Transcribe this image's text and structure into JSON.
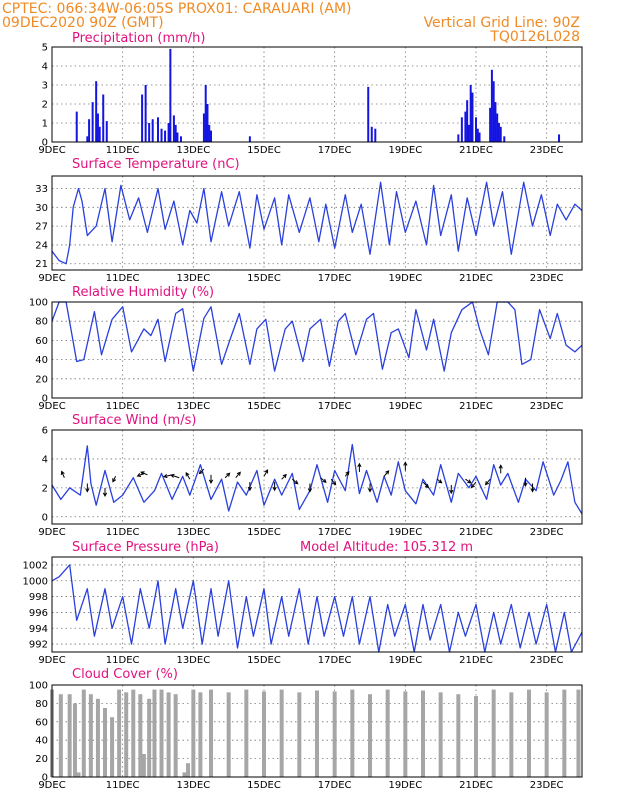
{
  "header": {
    "left1": "CPTEC:   066:34W-06:05S   PROX01: CARAUARI (AM)",
    "left2": "09DEC2020 90Z (GMT)",
    "right1": "Vertical Grid Line: 90Z",
    "right2": "TQ0126L028"
  },
  "chart_data": [
    {
      "type": "bar",
      "title": "Precipitation (mm/h)",
      "x_labels": [
        "9DEC",
        "11DEC",
        "13DEC",
        "15DEC",
        "17DEC",
        "19DEC",
        "21DEC",
        "23DEC"
      ],
      "ylim": [
        0,
        5
      ],
      "yticks": [
        "0",
        "1",
        "2",
        "3",
        "4",
        "5"
      ],
      "series": [
        {
          "color": "#1515e0",
          "x_days": [
            0.7,
            1.0,
            1.05,
            1.15,
            1.25,
            1.3,
            1.35,
            1.45,
            1.55,
            2.55,
            2.65,
            2.75,
            2.85,
            3.0,
            3.1,
            3.2,
            3.3,
            3.35,
            3.45,
            3.5,
            3.55,
            3.65,
            4.3,
            4.35,
            4.4,
            4.45,
            4.5,
            5.6,
            8.95,
            9.05,
            9.15,
            11.5,
            11.6,
            11.7,
            11.75,
            11.8,
            11.85,
            11.9,
            12.0,
            12.05,
            12.1,
            12.4,
            12.45,
            12.5,
            12.55,
            12.6,
            12.65,
            12.7,
            12.8,
            14.35
          ],
          "values": [
            1.6,
            0.3,
            1.2,
            2.1,
            3.2,
            1.5,
            0.8,
            2.5,
            1.1,
            2.5,
            3.0,
            1.0,
            1.2,
            1.3,
            0.7,
            0.6,
            1.0,
            4.9,
            1.4,
            0.9,
            0.5,
            0.3,
            1.5,
            3.0,
            2.0,
            0.9,
            0.6,
            0.3,
            2.9,
            0.8,
            0.7,
            0.4,
            1.3,
            1.6,
            2.2,
            0.9,
            3.0,
            2.6,
            1.3,
            0.7,
            0.5,
            1.8,
            3.8,
            3.2,
            2.1,
            1.5,
            1.0,
            0.8,
            0.3,
            0.4
          ]
        }
      ]
    },
    {
      "type": "line",
      "title": "Surface Temperature (nC)",
      "x_labels": [
        "9DEC",
        "11DEC",
        "13DEC",
        "15DEC",
        "17DEC",
        "19DEC",
        "21DEC",
        "23DEC"
      ],
      "ylim": [
        20,
        35
      ],
      "yticks": [
        "21",
        "24",
        "27",
        "30",
        "33"
      ],
      "series": [
        {
          "color": "#2a40dc",
          "x_days": [
            0,
            0.2,
            0.4,
            0.5,
            0.6,
            0.75,
            0.85,
            1.0,
            1.25,
            1.5,
            1.7,
            1.95,
            2.2,
            2.45,
            2.7,
            3.0,
            3.2,
            3.45,
            3.7,
            3.9,
            4.1,
            4.3,
            4.5,
            4.8,
            5.0,
            5.3,
            5.6,
            5.8,
            6.0,
            6.3,
            6.5,
            6.7,
            7.0,
            7.3,
            7.55,
            7.75,
            8.0,
            8.3,
            8.5,
            8.75,
            9.0,
            9.3,
            9.55,
            9.75,
            10.0,
            10.3,
            10.6,
            10.8,
            11.0,
            11.3,
            11.5,
            11.75,
            12.0,
            12.3,
            12.5,
            12.75,
            13.0,
            13.35,
            13.6,
            13.85,
            14.1,
            14.3,
            14.55,
            14.8,
            15.0
          ],
          "values": [
            23.0,
            21.5,
            21.0,
            24.0,
            30.0,
            33.0,
            31.0,
            25.5,
            27.0,
            33.0,
            24.5,
            33.5,
            28.0,
            31.5,
            26.0,
            33.0,
            26.5,
            31.0,
            24.0,
            29.5,
            27.5,
            33.0,
            24.5,
            32.5,
            27.0,
            32.5,
            23.5,
            32.0,
            26.5,
            31.5,
            24.0,
            32.0,
            26.0,
            31.5,
            24.5,
            30.5,
            23.5,
            32.0,
            26.0,
            30.5,
            22.5,
            34.0,
            24.0,
            32.5,
            26.0,
            31.0,
            24.0,
            33.5,
            25.5,
            32.0,
            23.0,
            31.5,
            25.5,
            34.0,
            27.0,
            32.5,
            22.5,
            34.0,
            27.0,
            32.0,
            25.5,
            30.5,
            28.0,
            30.5,
            29.5
          ]
        }
      ]
    },
    {
      "type": "line",
      "title": "Relative Humidity (%)",
      "x_labels": [
        "9DEC",
        "11DEC",
        "13DEC",
        "15DEC",
        "17DEC",
        "19DEC",
        "21DEC",
        "23DEC"
      ],
      "ylim": [
        0,
        100
      ],
      "yticks": [
        "0",
        "20",
        "40",
        "60",
        "80",
        "100"
      ],
      "series": [
        {
          "color": "#2a40dc",
          "x_days": [
            0,
            0.2,
            0.4,
            0.7,
            0.9,
            1.2,
            1.4,
            1.7,
            2.0,
            2.25,
            2.6,
            2.8,
            3.0,
            3.2,
            3.5,
            3.7,
            4.0,
            4.3,
            4.5,
            4.8,
            5.05,
            5.3,
            5.6,
            5.8,
            6.05,
            6.3,
            6.6,
            6.8,
            7.1,
            7.3,
            7.6,
            7.85,
            8.1,
            8.3,
            8.6,
            8.9,
            9.1,
            9.35,
            9.6,
            9.8,
            10.1,
            10.3,
            10.6,
            10.8,
            11.1,
            11.3,
            11.6,
            11.9,
            12.1,
            12.35,
            12.6,
            12.9,
            13.1,
            13.3,
            13.55,
            13.8,
            14.1,
            14.3,
            14.55,
            14.8,
            15.0
          ],
          "values": [
            80,
            100,
            100,
            38,
            40,
            90,
            45,
            82,
            95,
            48,
            72,
            65,
            82,
            38,
            88,
            93,
            28,
            83,
            95,
            35,
            62,
            88,
            35,
            72,
            82,
            28,
            72,
            80,
            38,
            72,
            82,
            33,
            80,
            88,
            45,
            82,
            88,
            30,
            68,
            72,
            42,
            92,
            50,
            82,
            28,
            68,
            92,
            100,
            72,
            45,
            100,
            100,
            92,
            35,
            40,
            92,
            62,
            88,
            55,
            48,
            55
          ]
        }
      ]
    },
    {
      "type": "line",
      "title": "Surface Wind (m/s)",
      "x_labels": [
        "9DEC",
        "11DEC",
        "13DEC",
        "15DEC",
        "17DEC",
        "19DEC",
        "21DEC",
        "23DEC"
      ],
      "ylim": [
        -0.5,
        6
      ],
      "yticks": [
        "0",
        "2",
        "4",
        "6"
      ],
      "series": [
        {
          "color": "#2a40dc",
          "x_days": [
            0,
            0.25,
            0.5,
            0.8,
            1.0,
            1.1,
            1.25,
            1.5,
            1.75,
            2.0,
            2.3,
            2.6,
            2.9,
            3.1,
            3.4,
            3.7,
            3.9,
            4.2,
            4.5,
            4.8,
            5.0,
            5.25,
            5.5,
            5.8,
            6.0,
            6.3,
            6.5,
            6.8,
            7.0,
            7.3,
            7.5,
            7.8,
            8.0,
            8.3,
            8.5,
            8.7,
            8.9,
            9.2,
            9.4,
            9.6,
            9.8,
            10.0,
            10.3,
            10.5,
            10.8,
            11.0,
            11.3,
            11.5,
            11.8,
            12.0,
            12.3,
            12.5,
            12.7,
            12.9,
            13.2,
            13.4,
            13.7,
            13.9,
            14.2,
            14.4,
            14.6,
            14.8,
            15.0
          ],
          "values": [
            2.2,
            1.2,
            2.0,
            1.5,
            4.9,
            2.3,
            0.8,
            3.2,
            1.0,
            1.5,
            2.7,
            1.0,
            1.8,
            3.0,
            1.2,
            2.8,
            1.5,
            3.6,
            1.2,
            2.6,
            0.4,
            2.4,
            1.5,
            3.2,
            0.8,
            2.6,
            1.5,
            3.0,
            0.5,
            1.8,
            3.6,
            1.0,
            3.2,
            1.8,
            5.0,
            1.6,
            3.2,
            1.0,
            2.8,
            1.5,
            3.8,
            1.8,
            0.9,
            2.6,
            1.5,
            3.6,
            1.0,
            3.0,
            2.0,
            2.8,
            1.2,
            3.6,
            2.2,
            3.0,
            1.0,
            2.6,
            1.8,
            3.8,
            1.5,
            2.5,
            3.8,
            1.0,
            0.2
          ]
        }
      ],
      "arrows": {
        "color": "#000",
        "x_days": [
          0.35,
          1.0,
          1.5,
          1.8,
          2.6,
          2.7,
          3.4,
          3.6,
          3.9,
          4.3,
          4.5,
          4.9,
          5.2,
          5.6,
          6.0,
          6.3,
          6.5,
          6.8,
          7.3,
          7.6,
          7.9,
          8.3,
          8.7,
          9.0,
          9.4,
          10.0,
          10.5,
          10.9,
          11.3,
          11.7,
          12.0,
          12.4,
          12.7,
          13.4,
          13.6
        ],
        "u": [
          -0.3,
          0,
          0,
          -0.3,
          -0.7,
          -0.7,
          -0.9,
          -0.9,
          -0.4,
          -0.5,
          0,
          0.5,
          0.5,
          0,
          0.4,
          0,
          0.5,
          0.6,
          0,
          0.6,
          0.5,
          0.4,
          0,
          0,
          0.5,
          0,
          0.6,
          0.5,
          0,
          0.6,
          -0.5,
          -0.5,
          0,
          0,
          0
        ],
        "v": [
          0.7,
          -0.9,
          -0.9,
          -0.6,
          -0.3,
          0.3,
          -0.2,
          0.3,
          0.7,
          -0.5,
          -0.9,
          0.5,
          0.6,
          -0.9,
          0.7,
          -0.9,
          0.5,
          -0.5,
          -0.9,
          -0.5,
          -0.6,
          0.5,
          0.9,
          -0.9,
          0.6,
          0.9,
          -0.6,
          -0.4,
          -0.9,
          -0.4,
          -0.6,
          -0.6,
          0.9,
          -0.9,
          -0.9
        ],
        "y": [
          2.7,
          2.3,
          2.0,
          2.8,
          3.0,
          2.9,
          2.9,
          2.7,
          2.6,
          3.3,
          2.9,
          2.7,
          2.7,
          2.4,
          2.8,
          2.4,
          2.6,
          2.6,
          2.3,
          2.7,
          2.6,
          2.8,
          3.1,
          2.3,
          2.8,
          3.2,
          2.4,
          2.6,
          2.2,
          2.6,
          2.4,
          2.6,
          3.0,
          2.7,
          2.3
        ]
      }
    },
    {
      "type": "line",
      "title": "Surface Pressure (hPa)",
      "annotation": "Model Altitude: 105.312 m",
      "x_labels": [
        "9DEC",
        "11DEC",
        "13DEC",
        "15DEC",
        "17DEC",
        "19DEC",
        "21DEC",
        "23DEC"
      ],
      "ylim": [
        991,
        1003
      ],
      "yticks": [
        "992",
        "994",
        "996",
        "998",
        "1000",
        "1002"
      ],
      "series": [
        {
          "color": "#2a40dc",
          "x_days": [
            0,
            0.2,
            0.5,
            0.7,
            1.0,
            1.2,
            1.5,
            1.7,
            2.0,
            2.25,
            2.5,
            2.75,
            3.0,
            3.2,
            3.5,
            3.7,
            4.0,
            4.25,
            4.5,
            4.7,
            5.0,
            5.25,
            5.5,
            5.7,
            6.0,
            6.2,
            6.5,
            6.7,
            7.0,
            7.25,
            7.5,
            7.7,
            8.0,
            8.25,
            8.5,
            8.7,
            9.0,
            9.25,
            9.5,
            9.7,
            10.0,
            10.25,
            10.5,
            10.7,
            11.0,
            11.25,
            11.5,
            11.7,
            12.0,
            12.25,
            12.5,
            12.7,
            13.0,
            13.25,
            13.5,
            13.7,
            14.0,
            14.25,
            14.5,
            14.7,
            15.0
          ],
          "values": [
            1000,
            1000.5,
            1002,
            995,
            999,
            993,
            999,
            994,
            998,
            992,
            999,
            994,
            1000,
            992,
            999,
            994,
            1000,
            992,
            999,
            993,
            1000,
            991.5,
            998,
            993,
            999,
            992,
            998,
            993,
            999,
            992,
            998,
            993,
            998,
            993,
            998,
            992,
            998,
            991,
            997,
            993,
            997,
            991,
            997,
            992.5,
            997,
            991,
            996,
            993,
            997,
            991,
            996,
            992,
            997,
            991.5,
            996,
            992,
            997,
            991,
            996,
            991,
            993.5
          ]
        }
      ]
    },
    {
      "type": "bar",
      "title": "Cloud Cover (%)",
      "x_labels": [
        "9DEC",
        "11DEC",
        "13DEC",
        "15DEC",
        "17DEC",
        "19DEC",
        "21DEC",
        "23DEC"
      ],
      "ylim": [
        0,
        100
      ],
      "yticks": [
        "0",
        "20",
        "40",
        "60",
        "80",
        "100"
      ],
      "series": [
        {
          "color": "#a6a6a6",
          "x_days": [
            0.0,
            0.25,
            0.5,
            0.65,
            0.75,
            0.9,
            1.1,
            1.3,
            1.5,
            1.7,
            1.9,
            2.1,
            2.3,
            2.5,
            2.6,
            2.75,
            2.9,
            3.1,
            3.3,
            3.5,
            3.75,
            3.85,
            4.0,
            4.2,
            4.5,
            5.0,
            5.5,
            6.0,
            6.5,
            7.0,
            7.5,
            8.0,
            8.5,
            9.0,
            9.5,
            10.0,
            10.5,
            11.0,
            11.5,
            12.0,
            12.5,
            13.0,
            13.5,
            14.0,
            14.5,
            14.9
          ],
          "values": [
            95,
            90,
            90,
            80,
            5,
            95,
            90,
            85,
            75,
            65,
            95,
            92,
            95,
            90,
            25,
            85,
            95,
            95,
            92,
            90,
            5,
            15,
            95,
            92,
            95,
            92,
            95,
            93,
            95,
            92,
            94,
            93,
            95,
            90,
            95,
            93,
            94,
            92,
            90,
            88,
            95,
            92,
            95,
            92,
            95,
            95
          ]
        }
      ]
    }
  ]
}
